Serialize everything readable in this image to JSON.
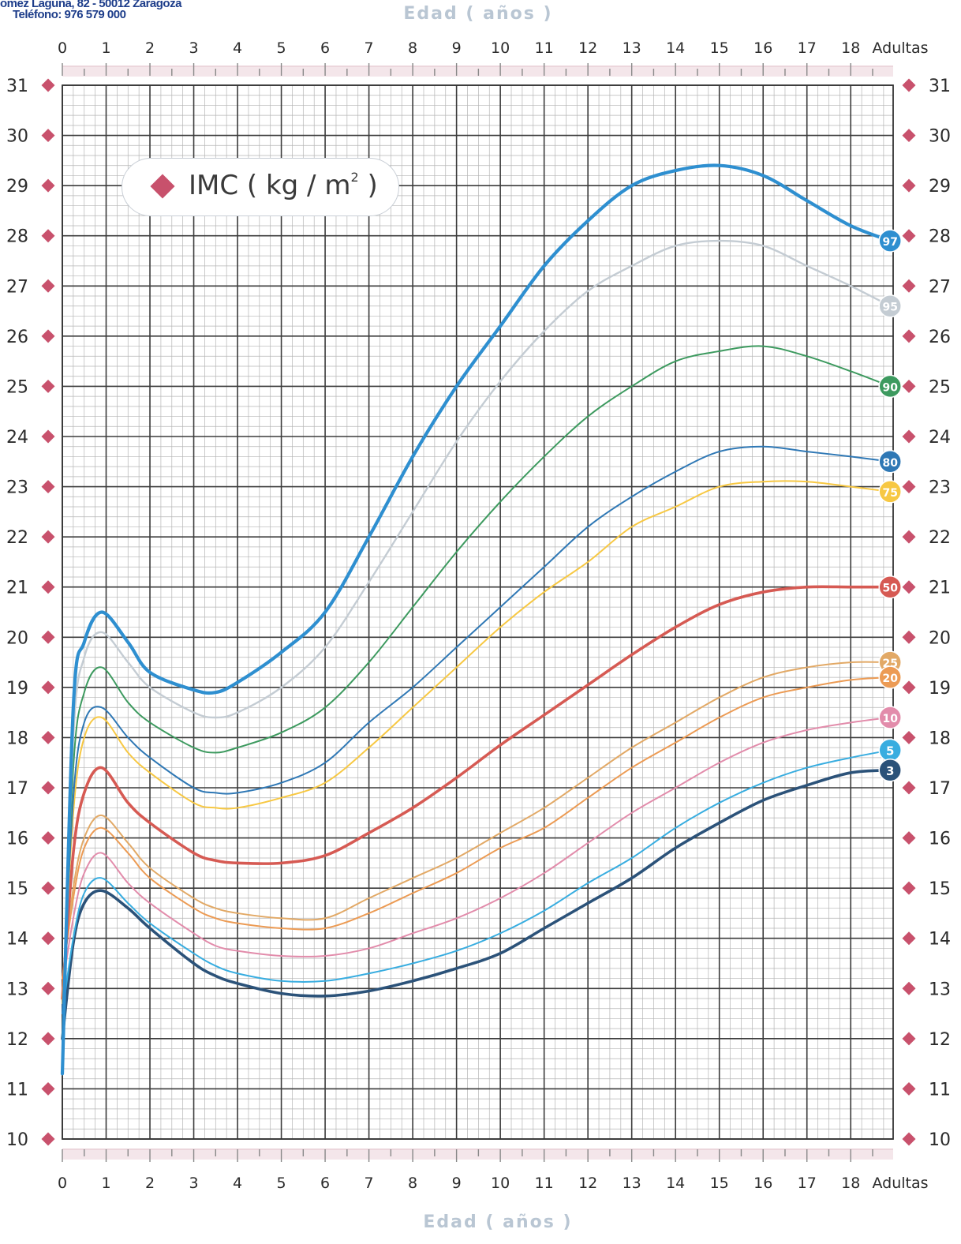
{
  "header": {
    "address": "omez Laguna, 82 - 50012 Zaragoza",
    "phone": "Teléfono: 976 579 000"
  },
  "chart_data": {
    "type": "line",
    "title_top": "Edad ( años )",
    "title_bottom": "Edad ( años )",
    "legend_box": {
      "label": "IMC ( kg / m",
      "superscript": "2",
      "close": " )"
    },
    "x_tick_labels": [
      "0",
      "1",
      "2",
      "3",
      "4",
      "5",
      "6",
      "7",
      "8",
      "9",
      "10",
      "11",
      "12",
      "13",
      "14",
      "15",
      "16",
      "17",
      "18",
      "Adultas"
    ],
    "xlim": [
      0,
      19
    ],
    "ylim": [
      10,
      31
    ],
    "y_ticks": [
      10,
      11,
      12,
      13,
      14,
      15,
      16,
      17,
      18,
      19,
      20,
      21,
      22,
      23,
      24,
      25,
      26,
      27,
      28,
      29,
      30,
      31
    ],
    "grid": true,
    "x": [
      0,
      0.25,
      0.5,
      0.9,
      1.5,
      2,
      3,
      3.5,
      4,
      5,
      6,
      7,
      8,
      9,
      10,
      11,
      12,
      13,
      14,
      15,
      16,
      17,
      18,
      18.9
    ],
    "series": [
      {
        "name": "97",
        "color": "#2e8fd0",
        "width": 4.2,
        "values": [
          11.3,
          18.6,
          19.9,
          20.5,
          19.9,
          19.3,
          18.95,
          18.9,
          19.1,
          19.7,
          20.5,
          22.0,
          23.6,
          25.0,
          26.2,
          27.4,
          28.3,
          29.0,
          29.3,
          29.4,
          29.2,
          28.7,
          28.2,
          27.9
        ]
      },
      {
        "name": "95",
        "color": "#c4ccd3",
        "width": 2.4,
        "values": [
          11.5,
          18.0,
          19.6,
          20.1,
          19.5,
          19.0,
          18.5,
          18.4,
          18.5,
          19.0,
          19.8,
          21.1,
          22.5,
          23.9,
          25.1,
          26.1,
          26.9,
          27.4,
          27.8,
          27.9,
          27.8,
          27.4,
          27.0,
          26.6
        ]
      },
      {
        "name": "90",
        "color": "#3d9a5f",
        "width": 2.0,
        "values": [
          12.0,
          17.4,
          18.9,
          19.4,
          18.7,
          18.3,
          17.8,
          17.7,
          17.8,
          18.1,
          18.6,
          19.5,
          20.6,
          21.7,
          22.7,
          23.6,
          24.4,
          25.0,
          25.5,
          25.7,
          25.8,
          25.6,
          25.3,
          25.0
        ]
      },
      {
        "name": "80",
        "color": "#2f78b5",
        "width": 2.0,
        "values": [
          12.5,
          16.8,
          18.3,
          18.6,
          18.0,
          17.6,
          17.0,
          16.9,
          16.9,
          17.1,
          17.5,
          18.3,
          19.0,
          19.8,
          20.6,
          21.4,
          22.2,
          22.8,
          23.3,
          23.7,
          23.8,
          23.7,
          23.6,
          23.5
        ]
      },
      {
        "name": "75",
        "color": "#f7c843",
        "width": 2.0,
        "values": [
          12.7,
          16.5,
          18.0,
          18.4,
          17.7,
          17.3,
          16.7,
          16.6,
          16.6,
          16.8,
          17.1,
          17.8,
          18.6,
          19.4,
          20.2,
          20.9,
          21.5,
          22.2,
          22.6,
          23.0,
          23.1,
          23.1,
          23.0,
          22.9
        ]
      },
      {
        "name": "50",
        "color": "#d65a53",
        "width": 3.6,
        "values": [
          12.8,
          15.7,
          16.9,
          17.4,
          16.7,
          16.3,
          15.7,
          15.55,
          15.5,
          15.5,
          15.65,
          16.1,
          16.6,
          17.2,
          17.85,
          18.45,
          19.05,
          19.65,
          20.2,
          20.65,
          20.9,
          21.0,
          21.0,
          21.0
        ]
      },
      {
        "name": "25",
        "color": "#e2a966",
        "width": 2.0,
        "values": [
          13.2,
          15.0,
          16.0,
          16.45,
          15.9,
          15.4,
          14.8,
          14.6,
          14.5,
          14.4,
          14.4,
          14.8,
          15.2,
          15.6,
          16.1,
          16.6,
          17.2,
          17.8,
          18.3,
          18.8,
          19.2,
          19.4,
          19.5,
          19.5
        ]
      },
      {
        "name": "20",
        "color": "#ec9b54",
        "width": 2.0,
        "values": [
          13.2,
          14.8,
          15.8,
          16.2,
          15.7,
          15.2,
          14.6,
          14.4,
          14.3,
          14.2,
          14.2,
          14.5,
          14.9,
          15.3,
          15.8,
          16.2,
          16.8,
          17.4,
          17.9,
          18.4,
          18.8,
          19.0,
          19.15,
          19.2
        ]
      },
      {
        "name": "10",
        "color": "#e28cab",
        "width": 2.0,
        "values": [
          13.0,
          14.4,
          15.3,
          15.7,
          15.1,
          14.7,
          14.1,
          13.85,
          13.75,
          13.65,
          13.65,
          13.8,
          14.1,
          14.4,
          14.8,
          15.3,
          15.9,
          16.5,
          17.0,
          17.5,
          17.9,
          18.15,
          18.3,
          18.4
        ]
      },
      {
        "name": "5",
        "color": "#38ade0",
        "width": 2.0,
        "values": [
          12.5,
          14.0,
          14.9,
          15.2,
          14.7,
          14.3,
          13.7,
          13.45,
          13.3,
          13.15,
          13.15,
          13.3,
          13.5,
          13.75,
          14.1,
          14.55,
          15.1,
          15.6,
          16.2,
          16.7,
          17.1,
          17.4,
          17.6,
          17.75
        ]
      },
      {
        "name": "3",
        "color": "#2b5279",
        "width": 3.6,
        "values": [
          12.0,
          13.9,
          14.7,
          14.95,
          14.6,
          14.2,
          13.5,
          13.25,
          13.1,
          12.9,
          12.85,
          12.95,
          13.15,
          13.4,
          13.7,
          14.2,
          14.7,
          15.2,
          15.8,
          16.3,
          16.75,
          17.05,
          17.3,
          17.35
        ]
      }
    ]
  }
}
